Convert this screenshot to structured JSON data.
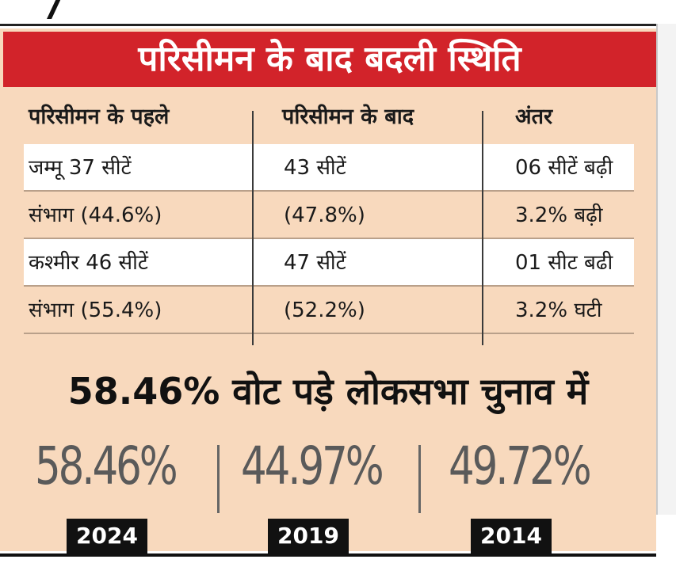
{
  "title": "परिसीमन के बाद बदली स्थिति",
  "table": {
    "headers": [
      "परिसीमन के पहले",
      "परिसीमन के बाद",
      "अंतर"
    ],
    "rows": [
      [
        "जम्मू 37 सीटें",
        "43 सीटें",
        "06 सीटें बढ़ी"
      ],
      [
        "संभाग (44.6%)",
        "(47.8%)",
        "3.2% बढ़ी"
      ],
      [
        "कश्मीर 46 सीटें",
        "47 सीटें",
        "01 सीट बढी"
      ],
      [
        "संभाग (55.4%)",
        "(52.2%)",
        "3.2% घटी"
      ]
    ]
  },
  "headline": "58.46% वोट पड़े लोकसभा चुनाव में",
  "turnout": [
    {
      "value": "58.46%",
      "year": "2024"
    },
    {
      "value": "44.97%",
      "year": "2019"
    },
    {
      "value": "49.72%",
      "year": "2014"
    }
  ],
  "colors": {
    "panel_bg": "#f8d9bd",
    "title_bg": "#d2232a",
    "title_text": "#ffffff",
    "year_badge_bg": "#111111",
    "big_number": "#5a5a5a"
  }
}
